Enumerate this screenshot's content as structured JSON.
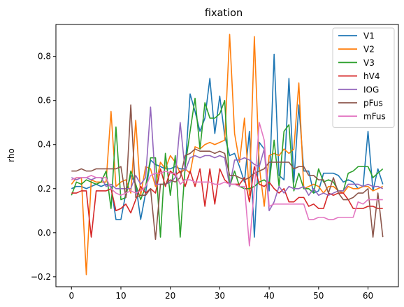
{
  "chart_data": {
    "type": "line",
    "title": "fixation",
    "xlabel": "",
    "ylabel": "rho",
    "xlim": [
      -3.15,
      66.15
    ],
    "ylim": [
      -0.245,
      0.945
    ],
    "xticks": [
      0,
      10,
      20,
      30,
      40,
      50,
      60
    ],
    "yticks": [
      -0.2,
      0.0,
      0.2,
      0.4,
      0.6,
      0.8
    ],
    "ytick_labels": [
      "−0.2",
      "0.0",
      "0.2",
      "0.4",
      "0.6",
      "0.8"
    ],
    "grid": false,
    "legend_position": "top-right",
    "x": [
      0,
      1,
      2,
      3,
      4,
      5,
      6,
      7,
      8,
      9,
      10,
      11,
      12,
      13,
      14,
      15,
      16,
      17,
      18,
      19,
      20,
      21,
      22,
      23,
      24,
      25,
      26,
      27,
      28,
      29,
      30,
      31,
      32,
      33,
      34,
      35,
      36,
      37,
      38,
      39,
      40,
      41,
      42,
      43,
      44,
      45,
      46,
      47,
      48,
      49,
      50,
      51,
      52,
      53,
      54,
      55,
      56,
      57,
      58,
      59,
      60,
      61,
      62,
      63
    ],
    "series": [
      {
        "name": "V1",
        "color": "#1f77b4",
        "values": [
          0.2,
          0.21,
          0.21,
          0.2,
          0.21,
          0.22,
          0.21,
          0.22,
          0.21,
          0.06,
          0.06,
          0.18,
          0.26,
          0.22,
          0.06,
          0.18,
          0.33,
          0.31,
          0.3,
          0.29,
          0.29,
          0.3,
          0.29,
          0.29,
          0.63,
          0.55,
          0.46,
          0.52,
          0.7,
          0.45,
          0.62,
          0.44,
          0.35,
          0.36,
          0.3,
          0.23,
          0.46,
          -0.02,
          0.41,
          0.38,
          0.19,
          0.81,
          0.26,
          0.24,
          0.7,
          0.23,
          0.58,
          0.28,
          0.28,
          0.18,
          0.19,
          0.27,
          0.27,
          0.27,
          0.26,
          0.23,
          0.24,
          0.23,
          0.2,
          0.21,
          0.46,
          0.19,
          0.29,
          0.22
        ]
      },
      {
        "name": "V2",
        "color": "#ff7f0e",
        "values": [
          0.22,
          0.25,
          0.25,
          -0.19,
          0.24,
          0.23,
          0.23,
          0.23,
          0.55,
          0.21,
          0.23,
          0.24,
          0.18,
          0.51,
          0.17,
          0.3,
          0.29,
          0.21,
          0.32,
          0.29,
          0.35,
          0.32,
          0.27,
          0.29,
          0.27,
          0.39,
          0.38,
          0.4,
          0.41,
          0.4,
          0.41,
          0.42,
          0.9,
          0.45,
          0.32,
          0.52,
          0.17,
          0.89,
          0.3,
          0.12,
          0.35,
          0.36,
          0.35,
          0.38,
          0.36,
          0.38,
          0.68,
          0.2,
          0.21,
          0.22,
          0.21,
          0.18,
          0.21,
          0.21,
          0.19,
          0.18,
          0.21,
          0.2,
          0.2,
          0.21,
          0.21,
          0.19,
          0.2,
          0.21
        ]
      },
      {
        "name": "V3",
        "color": "#2ca02c",
        "values": [
          0.17,
          0.23,
          0.22,
          0.24,
          0.23,
          0.22,
          0.23,
          0.28,
          0.11,
          0.48,
          0.15,
          0.16,
          0.28,
          0.22,
          0.15,
          0.21,
          0.34,
          0.34,
          -0.02,
          0.36,
          0.17,
          0.35,
          -0.02,
          0.3,
          0.46,
          0.61,
          0.38,
          0.59,
          0.52,
          0.52,
          0.54,
          0.6,
          0.21,
          0.28,
          0.21,
          0.2,
          0.2,
          0.21,
          0.23,
          0.24,
          0.22,
          0.42,
          0.21,
          0.46,
          0.49,
          0.19,
          0.27,
          0.2,
          0.2,
          0.18,
          0.29,
          0.23,
          0.24,
          0.23,
          0.19,
          0.19,
          0.27,
          0.28,
          0.3,
          0.3,
          0.3,
          0.25,
          0.27,
          0.29
        ]
      },
      {
        "name": "hV4",
        "color": "#d62728",
        "values": [
          0.18,
          0.18,
          0.19,
          0.19,
          -0.02,
          0.19,
          0.19,
          0.19,
          0.2,
          0.1,
          0.11,
          0.13,
          0.09,
          0.15,
          0.21,
          0.18,
          0.2,
          0.18,
          0.29,
          0.21,
          0.28,
          0.26,
          0.28,
          0.21,
          0.28,
          0.21,
          0.29,
          0.12,
          0.29,
          0.13,
          0.29,
          0.24,
          0.22,
          0.22,
          0.22,
          0.25,
          0.14,
          0.3,
          0.22,
          0.21,
          0.23,
          0.2,
          0.18,
          0.2,
          0.14,
          0.14,
          0.16,
          0.16,
          0.12,
          0.13,
          0.11,
          0.11,
          0.18,
          0.17,
          0.18,
          0.18,
          0.15,
          0.11,
          0.11,
          0.11,
          0.12,
          0.12,
          0.11,
          0.11
        ]
      },
      {
        "name": "IOG",
        "color": "#9467bd",
        "values": [
          0.25,
          0.24,
          0.25,
          0.25,
          0.24,
          0.25,
          0.25,
          0.21,
          0.22,
          0.2,
          0.2,
          0.2,
          0.2,
          0.26,
          0.22,
          0.25,
          0.57,
          0.22,
          0.22,
          0.22,
          0.23,
          0.25,
          0.5,
          0.28,
          0.34,
          0.35,
          0.34,
          0.35,
          0.35,
          0.34,
          0.35,
          0.34,
          0.21,
          0.33,
          0.33,
          0.34,
          0.33,
          0.31,
          0.3,
          0.38,
          0.1,
          0.14,
          0.21,
          0.18,
          0.21,
          0.2,
          0.2,
          0.21,
          0.17,
          0.2,
          0.17,
          0.18,
          0.17,
          0.18,
          0.19,
          0.19,
          0.22,
          0.22,
          0.22,
          0.21,
          0.22,
          0.21,
          0.21,
          0.2
        ]
      },
      {
        "name": "pFus",
        "color": "#8c564b",
        "values": [
          0.28,
          0.28,
          0.29,
          0.28,
          0.28,
          0.29,
          0.29,
          0.29,
          0.29,
          0.29,
          0.3,
          0.16,
          0.58,
          0.16,
          0.17,
          0.17,
          0.2,
          -0.03,
          0.22,
          0.22,
          0.24,
          0.23,
          0.25,
          0.35,
          0.36,
          0.38,
          0.37,
          0.37,
          0.37,
          0.36,
          0.37,
          0.36,
          0.26,
          0.26,
          0.25,
          0.24,
          0.25,
          0.27,
          0.28,
          0.29,
          0.32,
          0.32,
          0.32,
          0.32,
          0.32,
          0.29,
          0.3,
          0.3,
          0.26,
          0.26,
          0.24,
          0.24,
          0.18,
          0.25,
          0.18,
          0.15,
          0.15,
          0.16,
          0.18,
          0.18,
          0.2,
          -0.02,
          0.18,
          -0.02
        ]
      },
      {
        "name": "mFus",
        "color": "#e377c2",
        "values": [
          0.24,
          0.25,
          0.25,
          0.25,
          0.26,
          0.25,
          0.25,
          0.25,
          0.2,
          0.18,
          0.17,
          0.18,
          0.19,
          0.18,
          0.19,
          0.21,
          0.26,
          0.27,
          0.27,
          0.28,
          0.27,
          0.27,
          0.22,
          0.24,
          0.24,
          0.23,
          0.23,
          0.23,
          0.23,
          0.22,
          0.22,
          0.23,
          0.22,
          0.22,
          0.21,
          0.21,
          -0.06,
          0.2,
          0.5,
          0.42,
          0.12,
          0.13,
          0.13,
          0.13,
          0.13,
          0.13,
          0.13,
          0.13,
          0.06,
          0.06,
          0.07,
          0.07,
          0.06,
          0.06,
          0.07,
          0.07,
          0.07,
          0.07,
          0.14,
          0.13,
          0.15,
          0.15,
          0.15,
          0.15
        ]
      }
    ]
  }
}
